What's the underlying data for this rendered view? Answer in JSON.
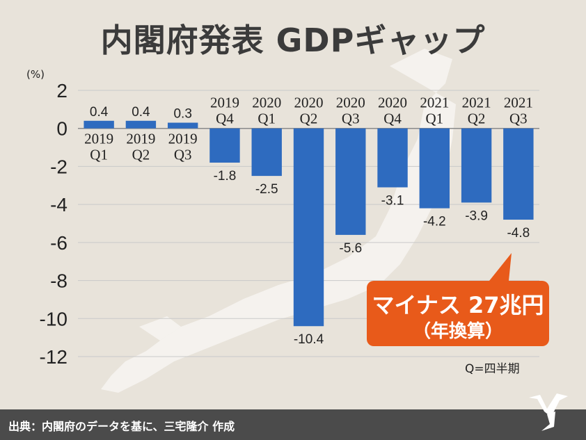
{
  "header": {
    "title": "内閣府発表 GDPギャップ"
  },
  "annotation": {
    "callout_main": "マイナス 27兆円",
    "callout_sub": "（年換算）",
    "legend_note": "Q=四半期"
  },
  "footer": {
    "source": "出典：内閣府のデータを基に、三宅隆介 作成"
  },
  "colors": {
    "bar": "#2e6bbf",
    "callout": "#e85a1a",
    "background": "#e8e3da",
    "footer": "#4b4b4b"
  },
  "chart_data": {
    "type": "bar",
    "title": "内閣府発表 GDPギャップ",
    "ylabel": "(%)",
    "xlabel": "",
    "ylim": [
      -12,
      2
    ],
    "yticks": [
      2,
      0,
      -2,
      -4,
      -6,
      -8,
      -10,
      -12
    ],
    "grid": true,
    "categories": [
      [
        "2019",
        "Q1"
      ],
      [
        "2019",
        "Q2"
      ],
      [
        "2019",
        "Q3"
      ],
      [
        "2019",
        "Q4"
      ],
      [
        "2020",
        "Q1"
      ],
      [
        "2020",
        "Q2"
      ],
      [
        "2020",
        "Q3"
      ],
      [
        "2020",
        "Q4"
      ],
      [
        "2021",
        "Q1"
      ],
      [
        "2021",
        "Q2"
      ],
      [
        "2021",
        "Q3"
      ]
    ],
    "values": [
      0.4,
      0.4,
      0.3,
      -1.8,
      -2.5,
      -10.4,
      -5.6,
      -3.1,
      -4.2,
      -3.9,
      -4.8
    ],
    "value_labels": [
      "0.4",
      "0.4",
      "0.3",
      "-1.8",
      "-2.5",
      "-10.4",
      "-5.6",
      "-3.1",
      "-4.2",
      "-3.9",
      "-4.8"
    ]
  }
}
